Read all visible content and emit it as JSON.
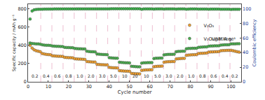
{
  "chart_data": {
    "type": "scatter",
    "xlabel": "Cycle number",
    "ylabel": "Specific capacity / mAh g⁻¹",
    "y2label": "Coulombic efficiency",
    "x": [
      1,
      2,
      3,
      4,
      5,
      6,
      7,
      8,
      9,
      10,
      11,
      12,
      13,
      14,
      15,
      16,
      17,
      18,
      19,
      20,
      21,
      22,
      23,
      24,
      25,
      26,
      27,
      28,
      29,
      30,
      31,
      32,
      33,
      34,
      35,
      36,
      37,
      38,
      39,
      40,
      41,
      42,
      43,
      44,
      45,
      46,
      47,
      48,
      49,
      50,
      51,
      52,
      53,
      54,
      55,
      56,
      57,
      58,
      59,
      60,
      61,
      62,
      63,
      64,
      65,
      66,
      67,
      68,
      69,
      70,
      71,
      72,
      73,
      74,
      75,
      76,
      77,
      78,
      79,
      80,
      81,
      82,
      83,
      84,
      85,
      86,
      87,
      88,
      89,
      90,
      91,
      92,
      93,
      94,
      95,
      96,
      97,
      98,
      99,
      100,
      101,
      102,
      103,
      104
    ],
    "series": [
      {
        "name": "V₂O₃",
        "color": "#f0a030",
        "marker": "circle",
        "values": [
          400,
          370,
          350,
          340,
          335,
          330,
          310,
          305,
          300,
          298,
          296,
          285,
          283,
          281,
          280,
          279,
          278,
          268,
          266,
          265,
          264,
          263,
          252,
          250,
          249,
          248,
          247,
          246,
          222,
          220,
          218,
          217,
          216,
          192,
          190,
          188,
          187,
          186,
          185,
          158,
          156,
          154,
          153,
          152,
          122,
          120,
          118,
          117,
          116,
          115,
          92,
          90,
          89,
          88,
          87,
          125,
          128,
          130,
          131,
          132,
          132,
          165,
          168,
          170,
          171,
          172,
          215,
          218,
          220,
          221,
          222,
          222,
          250,
          253,
          255,
          256,
          257,
          290,
          293,
          295,
          296,
          297,
          298,
          310,
          312,
          313,
          314,
          315,
          325,
          327,
          328,
          329,
          330,
          331,
          340,
          342,
          343,
          344,
          345,
          345,
          340,
          335,
          330,
          325
        ]
      },
      {
        "name": "V₂O₃@MXene",
        "color": "#4caf50",
        "marker": "circle",
        "values": [
          425,
          420,
          418,
          415,
          415,
          412,
          405,
          402,
          400,
          400,
          398,
          392,
          390,
          389,
          388,
          387,
          386,
          378,
          376,
          375,
          374,
          373,
          365,
          363,
          362,
          361,
          360,
          360,
          335,
          332,
          330,
          329,
          328,
          305,
          302,
          300,
          299,
          298,
          297,
          265,
          262,
          260,
          259,
          258,
          215,
          212,
          210,
          209,
          208,
          207,
          170,
          168,
          166,
          165,
          164,
          205,
          208,
          209,
          210,
          210,
          211,
          255,
          258,
          259,
          260,
          260,
          295,
          298,
          300,
          301,
          301,
          302,
          330,
          333,
          334,
          335,
          335,
          362,
          365,
          366,
          367,
          367,
          368,
          378,
          380,
          381,
          382,
          382,
          390,
          392,
          393,
          394,
          394,
          395,
          402,
          404,
          405,
          405,
          406,
          415,
          416,
          416,
          417,
          417
        ]
      },
      {
        "color": "#3cb44b",
        "marker": "circle",
        "axis": "y2",
        "values": [
          86,
          97,
          98.5,
          99,
          99.2,
          99.3,
          99.4,
          99.5,
          99.5,
          99.6,
          99.6,
          99.6,
          99.7,
          99.7,
          99.7,
          99.7,
          99.8,
          99.8,
          99.8,
          99.8,
          99.8,
          99.8,
          99.8,
          99.9,
          99.9,
          99.9,
          99.9,
          99.9,
          99.9,
          99.9,
          99.9,
          99.9,
          99.9,
          99.9,
          99.9,
          99.9,
          99.9,
          99.9,
          99.9,
          99.9,
          100,
          100,
          100,
          100,
          100,
          100,
          100,
          100,
          100,
          100,
          100,
          100,
          100,
          100,
          100,
          99.2,
          99.8,
          99.9,
          99.9,
          99.9,
          99.9,
          99.6,
          99.8,
          99.9,
          99.9,
          99.9,
          99.6,
          99.8,
          99.8,
          99.8,
          99.8,
          99.8,
          99.5,
          99.7,
          99.8,
          99.8,
          99.8,
          99.4,
          99.6,
          99.7,
          99.7,
          99.7,
          99.7,
          99.5,
          99.6,
          99.6,
          99.6,
          99.6,
          99.4,
          99.5,
          99.5,
          99.5,
          99.5,
          99.5,
          99.3,
          99.4,
          99.4,
          99.4,
          99.4,
          99.1,
          99.2,
          99.2,
          99.2,
          99.2
        ]
      }
    ],
    "xlim": [
      0,
      105
    ],
    "xticks": [
      0,
      10,
      20,
      30,
      40,
      50,
      60,
      70,
      80,
      90,
      100
    ],
    "ylim": [
      0,
      850
    ],
    "yticks": [
      0,
      200,
      400,
      600,
      800
    ],
    "y2lim": [
      0,
      106.25
    ],
    "y2ticks": [
      0,
      20,
      40,
      60,
      80,
      100
    ],
    "legend": "right",
    "grid": false,
    "annotations": [
      {
        "text": "0.2",
        "x": 3.5,
        "y": 20
      },
      {
        "text": "0.4",
        "x": 9,
        "y": 20
      },
      {
        "text": "0.6",
        "x": 14.5,
        "y": 20
      },
      {
        "text": "0.8",
        "x": 20,
        "y": 20
      },
      {
        "text": "1.0",
        "x": 25.5,
        "y": 20
      },
      {
        "text": "2.0",
        "x": 31,
        "y": 20
      },
      {
        "text": "3.0",
        "x": 36.5,
        "y": 20
      },
      {
        "text": "5.0",
        "x": 42,
        "y": 20
      },
      {
        "text": "10",
        "x": 47.5,
        "y": 20
      },
      {
        "text": "20",
        "x": 53,
        "y": 20
      },
      {
        "text": "10",
        "x": 58.5,
        "y": 20
      },
      {
        "text": "5.0",
        "x": 64,
        "y": 20
      },
      {
        "text": "3.0",
        "x": 69.5,
        "y": 20
      },
      {
        "text": "2.0",
        "x": 75,
        "y": 20
      },
      {
        "text": "1.0",
        "x": 80.5,
        "y": 20
      },
      {
        "text": "0.8",
        "x": 86,
        "y": 20
      },
      {
        "text": "0.6",
        "x": 91.5,
        "y": 20
      },
      {
        "text": "0.4",
        "x": 97,
        "y": 20
      },
      {
        "text": "0.2",
        "x": 102,
        "y": 20
      },
      {
        "text": "Unit: A g⁻¹"
      }
    ]
  }
}
